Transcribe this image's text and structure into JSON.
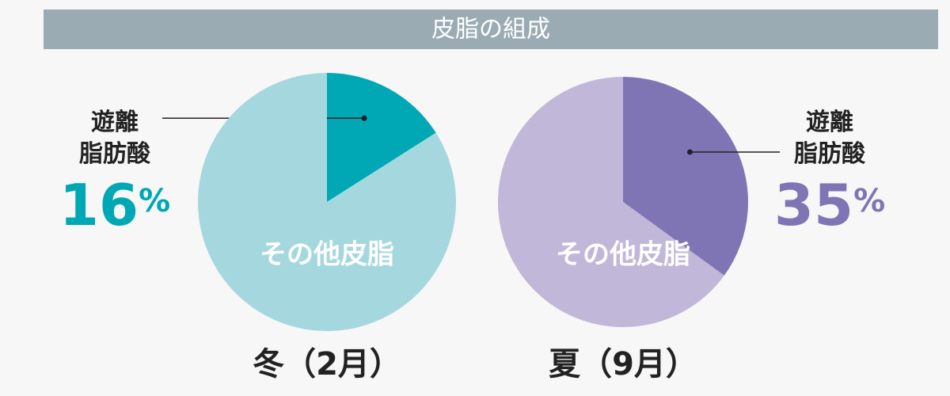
{
  "title": "皮脂の組成",
  "chart_data": [
    {
      "type": "pie",
      "title": "冬（2月）",
      "categories": [
        "遊離\n脂肪酸",
        "その他皮脂"
      ],
      "values": [
        16,
        84
      ],
      "value_labels": [
        "16%",
        null
      ],
      "colors": [
        "#00a8b6",
        "#a5d8de"
      ]
    },
    {
      "type": "pie",
      "title": "夏（9月）",
      "categories": [
        "遊離\n脂肪酸",
        "その他皮脂"
      ],
      "values": [
        35,
        65
      ],
      "value_labels": [
        "35%",
        null
      ],
      "colors": [
        "#8075b4",
        "#c1b7d9"
      ]
    }
  ]
}
